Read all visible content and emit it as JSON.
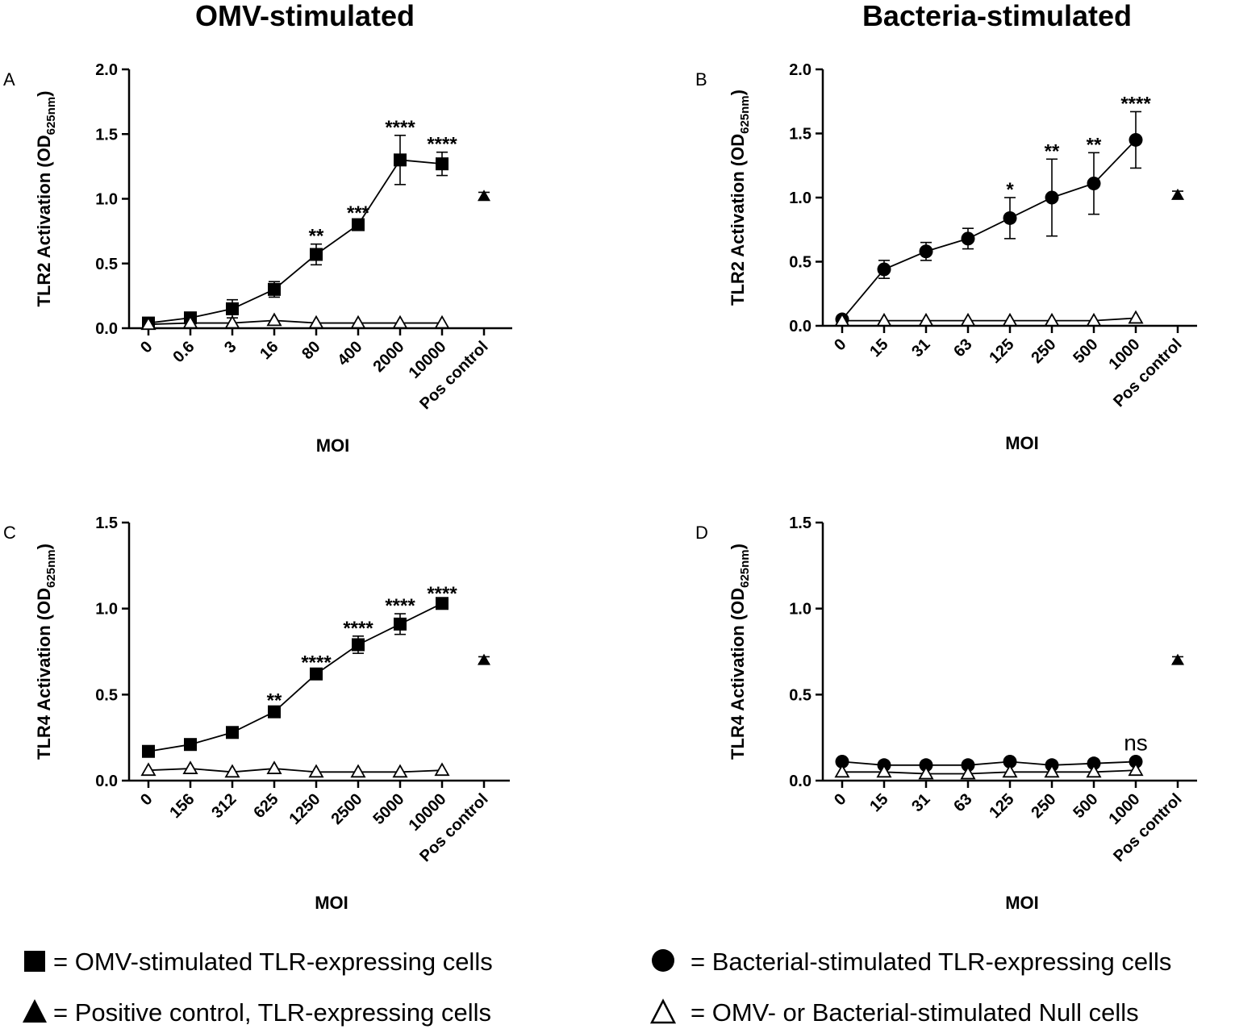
{
  "column_titles": [
    "OMV-stimulated",
    "Bacteria-stimulated"
  ],
  "colors": {
    "ink": "#000000",
    "background": "#ffffff"
  },
  "chart_data": [
    {
      "panel": "A",
      "type": "scatter",
      "title": "OMV-stimulated",
      "ylabel_main": "TLR2 Activation (OD",
      "ylabel_sub": "625nm",
      "ylabel_close": ")",
      "xlabel": "MOI",
      "ylim": [
        0,
        2.0
      ],
      "yticks": [
        0,
        0.5,
        1.0,
        1.5,
        2.0
      ],
      "ytick_labels": [
        "0.0",
        "0.5",
        "1.0",
        "1.5",
        "2.0"
      ],
      "categories": [
        "0",
        "0.6",
        "3",
        "16",
        "80",
        "400",
        "2000",
        "10000",
        "Pos control"
      ],
      "series": [
        {
          "name": "OMV-stimulated TLR-expressing cells",
          "marker": "square",
          "connected": true,
          "values": [
            0.04,
            0.08,
            0.15,
            0.3,
            0.57,
            0.8,
            1.3,
            1.27,
            null
          ],
          "errors": [
            0.02,
            0.03,
            0.07,
            0.06,
            0.08,
            0.03,
            0.19,
            0.09,
            null
          ]
        },
        {
          "name": "OMV- or Bacterial-stimulated Null cells",
          "marker": "triangle-open",
          "connected": true,
          "values": [
            0.03,
            0.04,
            0.04,
            0.06,
            0.04,
            0.04,
            0.04,
            0.04,
            null
          ],
          "errors": [
            0,
            0,
            0,
            0,
            0,
            0,
            0,
            0,
            null
          ]
        },
        {
          "name": "Positive control, TLR-expressing cells",
          "marker": "triangle-filled",
          "connected": false,
          "values": [
            null,
            null,
            null,
            null,
            null,
            null,
            null,
            null,
            1.02
          ],
          "errors": [
            null,
            null,
            null,
            null,
            null,
            null,
            null,
            null,
            0.03
          ]
        }
      ],
      "annotations": [
        {
          "category": "80",
          "text": "**"
        },
        {
          "category": "400",
          "text": "***"
        },
        {
          "category": "2000",
          "text": "****"
        },
        {
          "category": "10000",
          "text": "****"
        }
      ]
    },
    {
      "panel": "B",
      "type": "scatter",
      "title": "Bacteria-stimulated",
      "ylabel_main": "TLR2 Activation (OD",
      "ylabel_sub": "625nm",
      "ylabel_close": ")",
      "xlabel": "MOI",
      "ylim": [
        0,
        2.0
      ],
      "yticks": [
        0,
        0.5,
        1.0,
        1.5,
        2.0
      ],
      "ytick_labels": [
        "0.0",
        "0.5",
        "1.0",
        "1.5",
        "2.0"
      ],
      "categories": [
        "0",
        "15",
        "31",
        "63",
        "125",
        "250",
        "500",
        "1000",
        "Pos control"
      ],
      "series": [
        {
          "name": "Bacterial-stimulated TLR-expressing cells",
          "marker": "circle",
          "connected": true,
          "values": [
            0.05,
            0.44,
            0.58,
            0.68,
            0.84,
            1.0,
            1.11,
            1.45,
            null
          ],
          "errors": [
            0.02,
            0.07,
            0.07,
            0.08,
            0.16,
            0.3,
            0.24,
            0.22,
            null
          ]
        },
        {
          "name": "OMV- or Bacterial-stimulated Null cells",
          "marker": "triangle-open",
          "connected": true,
          "values": [
            0.04,
            0.04,
            0.04,
            0.04,
            0.04,
            0.04,
            0.04,
            0.06,
            null
          ],
          "errors": [
            0,
            0,
            0,
            0,
            0,
            0,
            0,
            0,
            null
          ]
        },
        {
          "name": "Positive control, TLR-expressing cells",
          "marker": "triangle-filled",
          "connected": false,
          "values": [
            null,
            null,
            null,
            null,
            null,
            null,
            null,
            null,
            1.02
          ],
          "errors": [
            null,
            null,
            null,
            null,
            null,
            null,
            null,
            null,
            0.03
          ]
        }
      ],
      "annotations": [
        {
          "category": "125",
          "text": "*"
        },
        {
          "category": "250",
          "text": "**"
        },
        {
          "category": "500",
          "text": "**"
        },
        {
          "category": "1000",
          "text": "****"
        }
      ]
    },
    {
      "panel": "C",
      "type": "scatter",
      "title": "OMV-stimulated",
      "ylabel_main": "TLR4 Activation (OD",
      "ylabel_sub": "625nm",
      "ylabel_close": ")",
      "xlabel": "MOI",
      "ylim": [
        0,
        1.5
      ],
      "yticks": [
        0,
        0.5,
        1.0,
        1.5
      ],
      "ytick_labels": [
        "0.0",
        "0.5",
        "1.0",
        "1.5"
      ],
      "categories": [
        "0",
        "156",
        "312",
        "625",
        "1250",
        "2500",
        "5000",
        "10000",
        "Pos control"
      ],
      "series": [
        {
          "name": "OMV-stimulated TLR-expressing cells",
          "marker": "square",
          "connected": true,
          "values": [
            0.17,
            0.21,
            0.28,
            0.4,
            0.62,
            0.79,
            0.91,
            1.03,
            null
          ],
          "errors": [
            0.01,
            0.01,
            0.01,
            0.02,
            0.02,
            0.05,
            0.06,
            0.01,
            null
          ]
        },
        {
          "name": "OMV- or Bacterial-stimulated Null cells",
          "marker": "triangle-open",
          "connected": true,
          "values": [
            0.06,
            0.07,
            0.05,
            0.07,
            0.05,
            0.05,
            0.05,
            0.06,
            null
          ],
          "errors": [
            0,
            0,
            0,
            0,
            0,
            0,
            0,
            0,
            null
          ]
        },
        {
          "name": "Positive control, TLR-expressing cells",
          "marker": "triangle-filled",
          "connected": false,
          "values": [
            null,
            null,
            null,
            null,
            null,
            null,
            null,
            null,
            0.7
          ],
          "errors": [
            null,
            null,
            null,
            null,
            null,
            null,
            null,
            null,
            0.02
          ]
        }
      ],
      "annotations": [
        {
          "category": "625",
          "text": "**"
        },
        {
          "category": "1250",
          "text": "****"
        },
        {
          "category": "2500",
          "text": "****"
        },
        {
          "category": "5000",
          "text": "****"
        },
        {
          "category": "10000",
          "text": "****"
        }
      ]
    },
    {
      "panel": "D",
      "type": "scatter",
      "title": "Bacteria-stimulated",
      "ylabel_main": "TLR4 Activation (OD",
      "ylabel_sub": "625nm",
      "ylabel_close": ")",
      "xlabel": "MOI",
      "ylim": [
        0,
        1.5
      ],
      "yticks": [
        0,
        0.5,
        1.0,
        1.5
      ],
      "ytick_labels": [
        "0.0",
        "0.5",
        "1.0",
        "1.5"
      ],
      "categories": [
        "0",
        "15",
        "31",
        "63",
        "125",
        "250",
        "500",
        "1000",
        "Pos control"
      ],
      "series": [
        {
          "name": "Bacterial-stimulated TLR-expressing cells",
          "marker": "circle",
          "connected": true,
          "values": [
            0.11,
            0.09,
            0.09,
            0.09,
            0.11,
            0.09,
            0.1,
            0.11,
            null
          ],
          "errors": [
            0.01,
            0.01,
            0.01,
            0.01,
            0.01,
            0.01,
            0.01,
            0.01,
            null
          ]
        },
        {
          "name": "OMV- or Bacterial-stimulated Null cells",
          "marker": "triangle-open",
          "connected": true,
          "values": [
            0.05,
            0.05,
            0.04,
            0.04,
            0.05,
            0.05,
            0.05,
            0.06,
            null
          ],
          "errors": [
            0,
            0,
            0,
            0,
            0,
            0,
            0,
            0,
            null
          ]
        },
        {
          "name": "Positive control, TLR-expressing cells",
          "marker": "triangle-filled",
          "connected": false,
          "values": [
            null,
            null,
            null,
            null,
            null,
            null,
            null,
            null,
            0.7
          ],
          "errors": [
            null,
            null,
            null,
            null,
            null,
            null,
            null,
            null,
            0.02
          ]
        }
      ],
      "annotations": [
        {
          "category": "1000",
          "text": "ns"
        }
      ]
    }
  ],
  "legend": [
    {
      "symbol": "■",
      "marker": "square",
      "text": "= OMV-stimulated TLR-expressing cells"
    },
    {
      "symbol": "●",
      "marker": "circle",
      "text": "= Bacterial-stimulated TLR-expressing cells"
    },
    {
      "symbol": "▲",
      "marker": "triangle-filled",
      "text": "= Positive control, TLR-expressing cells"
    },
    {
      "symbol": "△",
      "marker": "triangle-open",
      "text": "= OMV- or Bacterial-stimulated Null cells"
    }
  ]
}
